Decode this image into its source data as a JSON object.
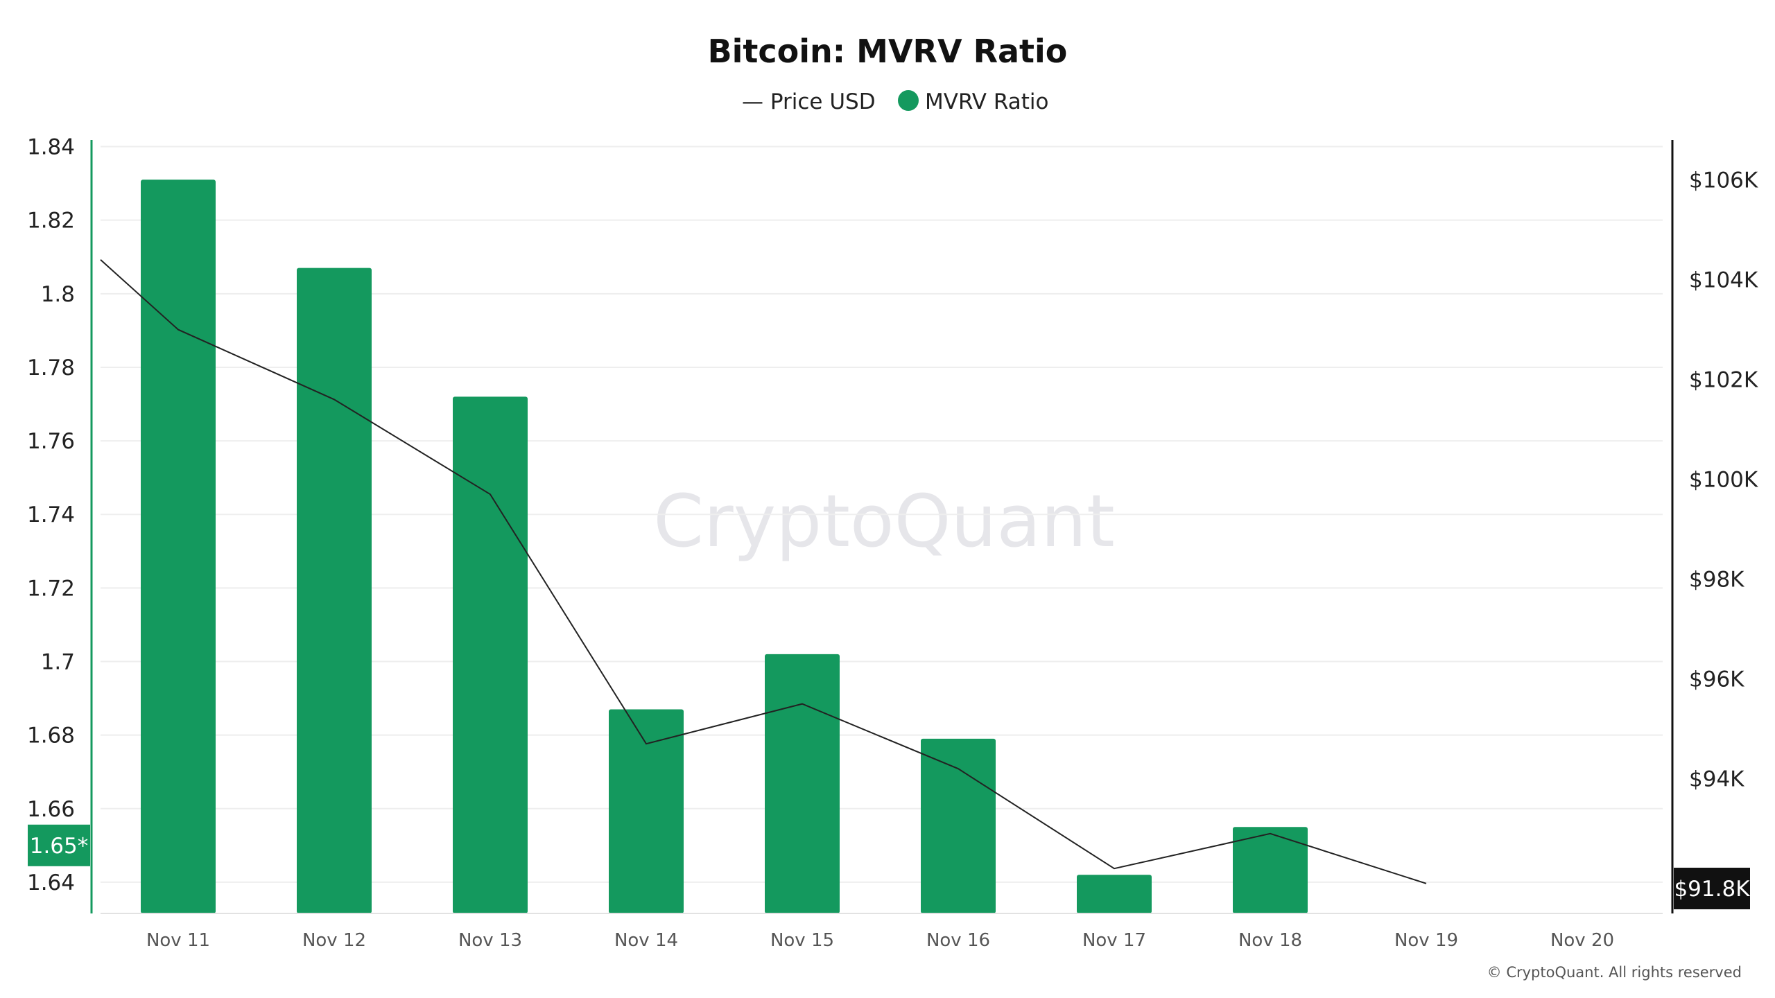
{
  "chart_data": {
    "type": "bar",
    "title": "Bitcoin: MVRV Ratio",
    "categories": [
      "Nov 11",
      "Nov 12",
      "Nov 13",
      "Nov 14",
      "Nov 15",
      "Nov 16",
      "Nov 17",
      "Nov 18",
      "Nov 19",
      "Nov 20"
    ],
    "series": [
      {
        "name": "MVRV Ratio",
        "type": "bar",
        "axis": "left",
        "color": "#14995e",
        "values": [
          1.831,
          1.807,
          1.772,
          1.687,
          1.702,
          1.679,
          1.642,
          1.655,
          null,
          null
        ]
      },
      {
        "name": "Price USD",
        "type": "line",
        "axis": "right",
        "color": "#222222",
        "values": [
          103000,
          101600,
          99700,
          94700,
          95500,
          94200,
          92200,
          92900,
          91900,
          null
        ],
        "lead_in": 104400
      }
    ],
    "y_left": {
      "ticks": [
        "1.84",
        "1.82",
        "1.8",
        "1.78",
        "1.76",
        "1.74",
        "1.72",
        "1.7",
        "1.68",
        "1.66",
        "1.64"
      ],
      "tick_values": [
        1.84,
        1.82,
        1.8,
        1.78,
        1.76,
        1.74,
        1.72,
        1.7,
        1.68,
        1.66,
        1.64
      ],
      "range": [
        1.6315,
        1.8418
      ]
    },
    "y_right": {
      "ticks": [
        "$106K",
        "$104K",
        "$102K",
        "$100K",
        "$98K",
        "$96K",
        "$94K"
      ],
      "tick_values": [
        106000,
        104000,
        102000,
        100000,
        98000,
        96000,
        94000
      ],
      "range": [
        91300,
        106800
      ]
    },
    "left_marker": {
      "label": "1.65*",
      "value": 1.65
    },
    "right_marker": {
      "label": "$91.8K",
      "value": 91800
    },
    "grid": true,
    "legend": "top-center"
  },
  "legend": {
    "price_label": "— Price USD",
    "mvrv_label": "MVRV Ratio"
  },
  "watermark": "CryptoQuant",
  "copyright": "© CryptoQuant. All rights reserved",
  "colors": {
    "bar": "#14995e",
    "line": "#222222",
    "grid": "#eeeeee",
    "right_badge": "#111111"
  }
}
